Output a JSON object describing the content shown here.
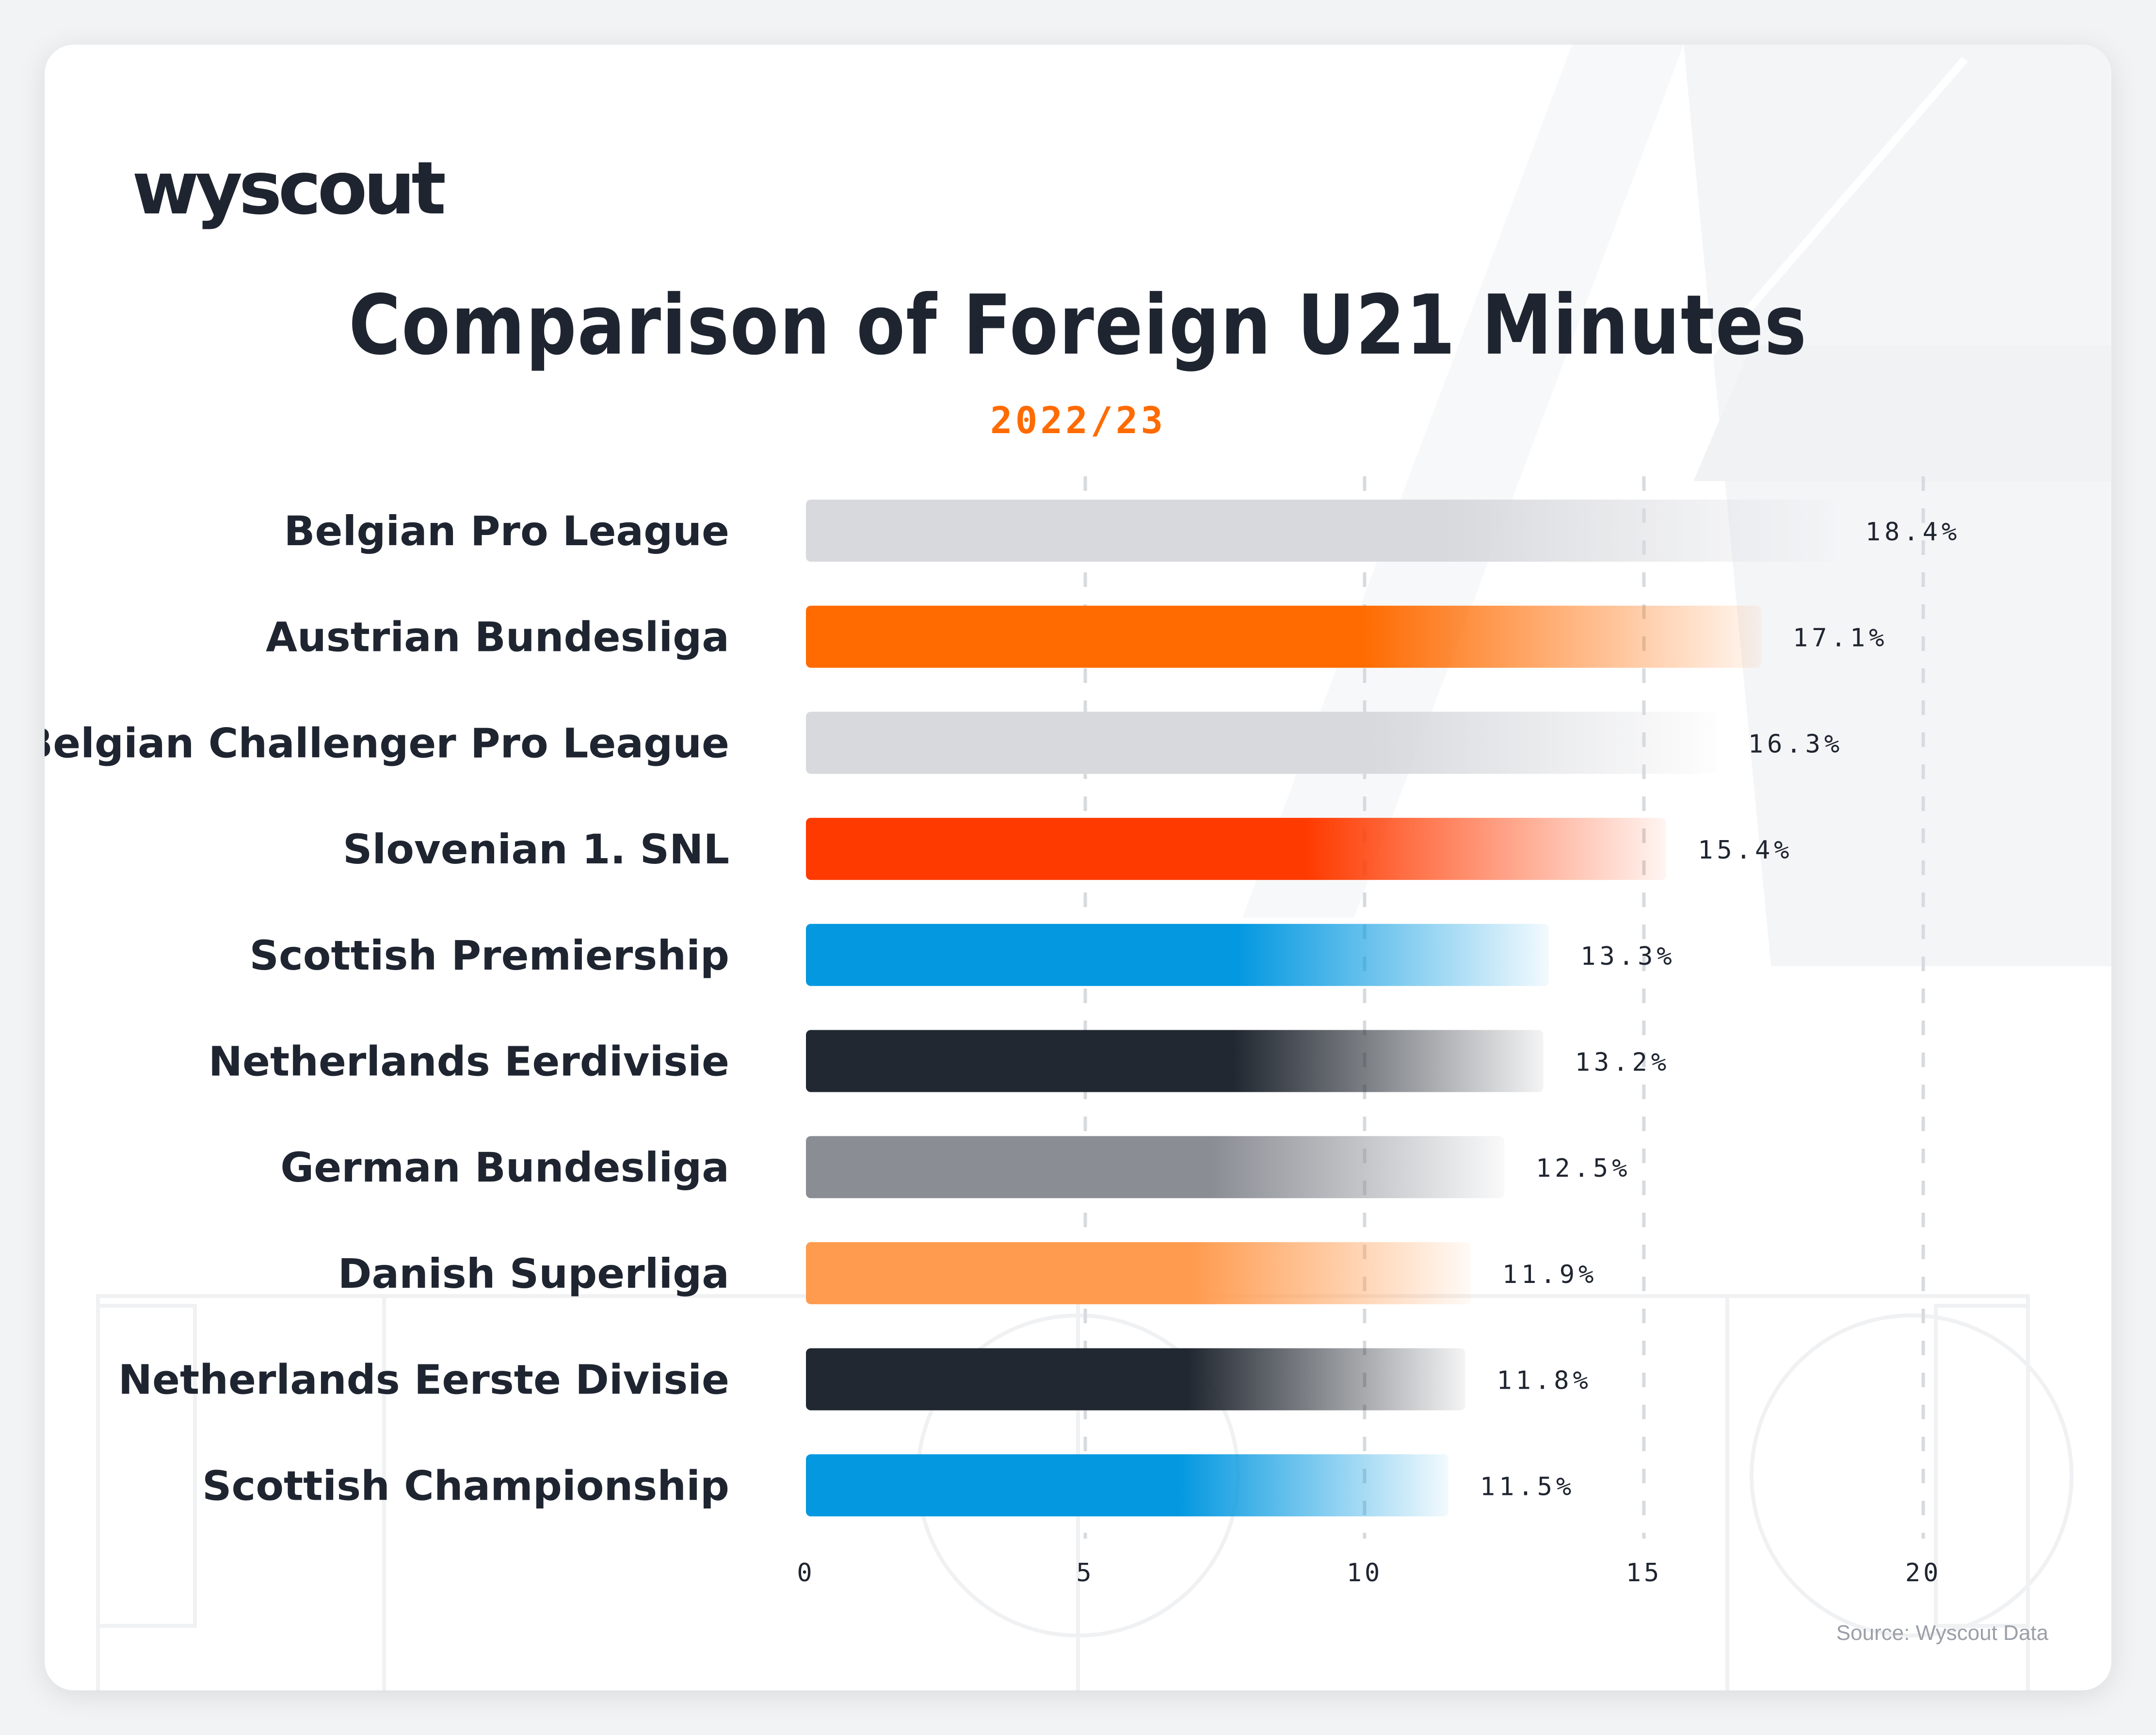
{
  "logo_text": "wyscout",
  "title": "Comparison of Foreign U21 Minutes",
  "subtitle": "2022/23",
  "source": "Source: Wyscout Data",
  "colors": {
    "light_gray": "#d8d9dd",
    "orange": "#ff6b00",
    "red_orange": "#ff3a00",
    "blue": "#0398e0",
    "dark": "#222831",
    "mid_gray": "#8a8d94",
    "light_orange": "#ff9b4f",
    "text": "#1f2530",
    "accent": "#ff6b00"
  },
  "chart_data": {
    "type": "bar",
    "orientation": "horizontal",
    "title": "Comparison of Foreign U21 Minutes",
    "subtitle": "2022/23",
    "categories": [
      "Belgian Pro League",
      "Austrian Bundesliga",
      "Belgian Challenger Pro League",
      "Slovenian 1. SNL",
      "Scottish Premiership",
      "Netherlands Eerdivisie",
      "German Bundesliga",
      "Danish Superliga",
      "Netherlands Eerste Divisie",
      "Scottish Championship"
    ],
    "values": [
      18.4,
      17.1,
      16.3,
      15.4,
      13.3,
      13.2,
      12.5,
      11.9,
      11.8,
      11.5
    ],
    "value_labels": [
      "18.4%",
      "17.1%",
      "16.3%",
      "15.4%",
      "13.3%",
      "13.2%",
      "12.5%",
      "11.9%",
      "11.8%",
      "11.5%"
    ],
    "bar_colors": [
      "#d8d9dd",
      "#ff6b00",
      "#d8d9dd",
      "#ff3a00",
      "#0398e0",
      "#222831",
      "#8a8d94",
      "#ff9b4f",
      "#222831",
      "#0398e0"
    ],
    "xlim": [
      0,
      20
    ],
    "xticks": [
      "0",
      "5",
      "10",
      "15",
      "20"
    ],
    "grid": "dashed vertical",
    "legend": "none"
  }
}
